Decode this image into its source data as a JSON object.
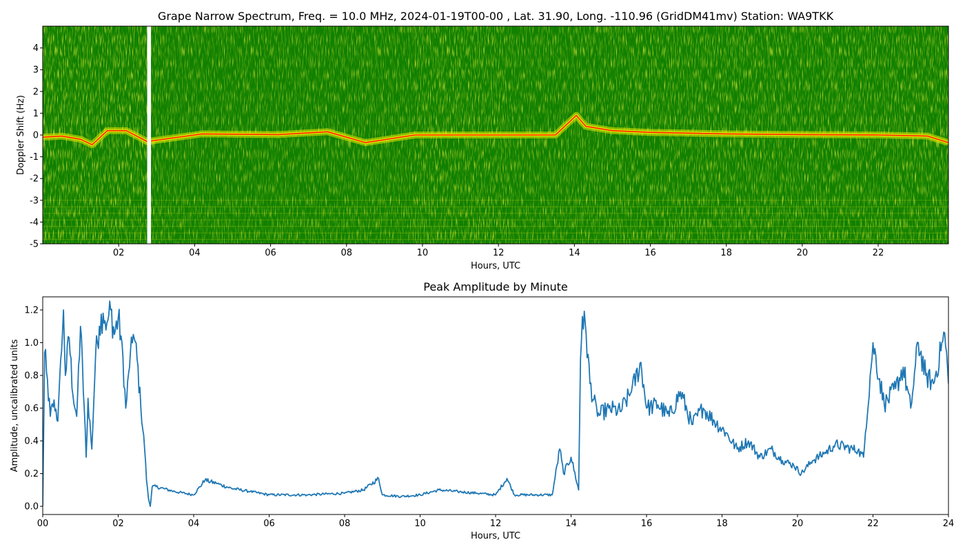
{
  "chart_data": [
    {
      "type": "heatmap",
      "title": "Grape Narrow Spectrum, Freq. = 10.0 MHz, 2024-01-19T00-00 , Lat.  31.90, Long. -110.96 (GridDM41mv) Station: WA9TKK",
      "xlabel": "Hours, UTC",
      "ylabel": "Doppler Shift (Hz)",
      "xlim": [
        0,
        23.85
      ],
      "ylim": [
        -5,
        5
      ],
      "x_ticks": [
        2,
        4,
        6,
        8,
        10,
        12,
        14,
        16,
        18,
        20,
        22
      ],
      "x_tick_labels": [
        "02",
        "04",
        "06",
        "08",
        "10",
        "12",
        "14",
        "16",
        "18",
        "20",
        "22"
      ],
      "y_ticks": [
        -5,
        -4,
        -3,
        -2,
        -1,
        0,
        1,
        2,
        3,
        4
      ],
      "y_tick_labels": [
        "-5",
        "-4",
        "-3",
        "-2",
        "-1",
        "0",
        "1",
        "2",
        "3",
        "4"
      ],
      "colors": {
        "background": "#118000",
        "noise": "#e8e800",
        "signal": "#ff2000",
        "gap": "#ffffff"
      },
      "data_gaps_hours": [
        [
          2.75,
          2.85
        ]
      ],
      "carrier_trace": [
        [
          0,
          -0.1
        ],
        [
          0.5,
          -0.05
        ],
        [
          1,
          -0.2
        ],
        [
          1.3,
          -0.45
        ],
        [
          1.7,
          0.2
        ],
        [
          2.2,
          0.2
        ],
        [
          2.75,
          -0.3
        ],
        [
          4.2,
          0.05
        ],
        [
          6.2,
          0.02
        ],
        [
          7.5,
          0.15
        ],
        [
          8.5,
          -0.35
        ],
        [
          9.8,
          0
        ],
        [
          13.5,
          0
        ],
        [
          14.05,
          0.9
        ],
        [
          14.3,
          0.4
        ],
        [
          15,
          0.2
        ],
        [
          16,
          0.12
        ],
        [
          18,
          0.05
        ],
        [
          20,
          0.02
        ],
        [
          22,
          0
        ],
        [
          23.3,
          -0.05
        ],
        [
          23.85,
          -0.35
        ]
      ]
    },
    {
      "type": "line",
      "title": "Peak Amplitude by Minute",
      "xlabel": "Hours, UTC",
      "ylabel": "Amplitude, uncalibrated units",
      "xlim": [
        0,
        24
      ],
      "ylim": [
        -0.05,
        1.28
      ],
      "x_ticks": [
        0,
        2,
        4,
        6,
        8,
        10,
        12,
        14,
        16,
        18,
        20,
        22,
        24
      ],
      "x_tick_labels": [
        "00",
        "02",
        "04",
        "06",
        "08",
        "10",
        "12",
        "14",
        "16",
        "18",
        "20",
        "22",
        "24"
      ],
      "y_ticks": [
        0,
        0.2,
        0.4,
        0.6,
        0.8,
        1.0,
        1.2
      ],
      "y_tick_labels": [
        "0.0",
        "0.2",
        "0.4",
        "0.6",
        "0.8",
        "1.0",
        "1.2"
      ],
      "line_color": "#1f77b4",
      "series": [
        {
          "x": [
            0.0,
            0.05,
            0.1,
            0.2,
            0.3,
            0.4,
            0.5,
            0.55,
            0.6,
            0.7,
            0.8,
            0.9,
            1.0,
            1.1,
            1.15,
            1.2,
            1.3,
            1.4,
            1.5,
            1.6,
            1.7,
            1.8,
            1.9,
            2.0,
            2.1,
            2.2,
            2.3,
            2.4,
            2.5,
            2.6,
            2.7,
            2.75,
            2.8,
            2.85,
            2.9,
            3.0,
            3.5,
            4.0,
            4.3,
            4.6,
            5.0,
            5.5,
            6.0,
            7.0,
            8.0,
            8.5,
            8.9,
            9.0,
            9.5,
            10.0,
            10.5,
            11.0,
            11.5,
            12.0,
            12.3,
            12.5,
            13.0,
            13.5,
            13.7,
            13.8,
            14.0,
            14.2,
            14.25,
            14.3,
            14.4,
            14.5,
            14.7,
            15.0,
            15.3,
            15.6,
            15.85,
            16.0,
            16.3,
            16.6,
            16.9,
            17.2,
            17.5,
            17.8,
            18.1,
            18.4,
            18.7,
            19.0,
            19.3,
            19.6,
            19.9,
            20.1,
            20.4,
            20.7,
            21.0,
            21.3,
            21.6,
            21.75,
            21.8,
            22.0,
            22.3,
            22.6,
            22.8,
            23.0,
            23.2,
            23.4,
            23.6,
            23.8,
            23.9,
            24.0
          ],
          "values": [
            0.0,
            0.94,
            0.82,
            0.55,
            0.65,
            0.52,
            0.95,
            1.2,
            0.8,
            1.03,
            0.68,
            0.55,
            1.1,
            0.6,
            0.3,
            0.66,
            0.35,
            0.92,
            1.1,
            1.18,
            1.12,
            1.2,
            1.05,
            1.15,
            1.0,
            0.6,
            0.85,
            1.05,
            0.9,
            0.6,
            0.35,
            0.16,
            0.05,
            0.0,
            0.12,
            0.12,
            0.09,
            0.07,
            0.16,
            0.14,
            0.11,
            0.09,
            0.07,
            0.07,
            0.08,
            0.1,
            0.17,
            0.07,
            0.06,
            0.07,
            0.1,
            0.09,
            0.08,
            0.07,
            0.17,
            0.07,
            0.07,
            0.07,
            0.35,
            0.2,
            0.3,
            0.1,
            0.9,
            1.16,
            1.05,
            0.75,
            0.55,
            0.6,
            0.58,
            0.7,
            0.88,
            0.6,
            0.62,
            0.55,
            0.7,
            0.5,
            0.6,
            0.52,
            0.45,
            0.35,
            0.4,
            0.3,
            0.35,
            0.28,
            0.25,
            0.2,
            0.28,
            0.32,
            0.38,
            0.36,
            0.34,
            0.3,
            0.45,
            1.0,
            0.62,
            0.72,
            0.85,
            0.6,
            1.0,
            0.8,
            0.75,
            0.95,
            1.06,
            0.75
          ]
        }
      ]
    }
  ]
}
